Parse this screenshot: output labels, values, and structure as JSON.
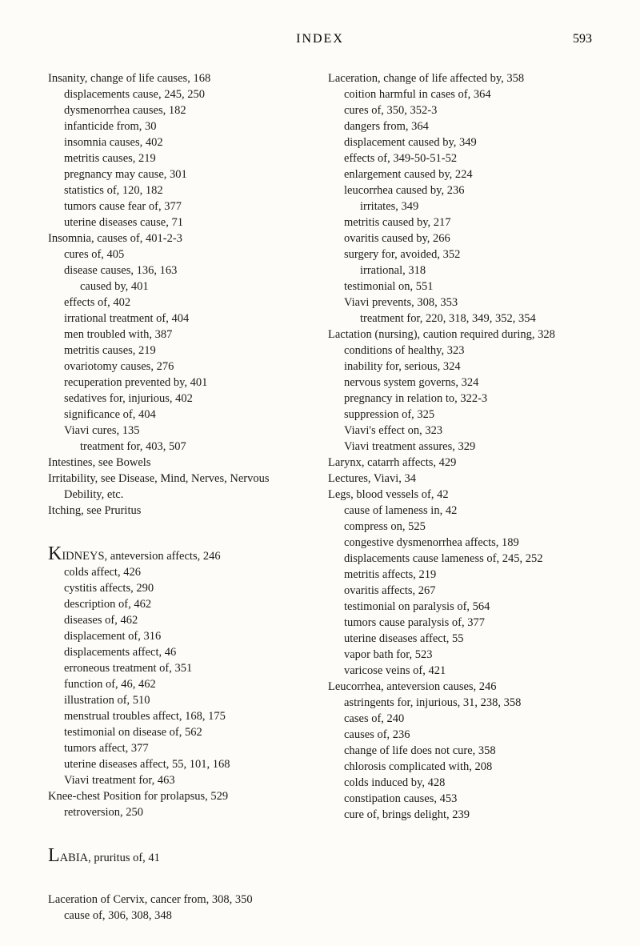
{
  "header": {
    "title": "INDEX",
    "page_number": "593"
  },
  "left_column": [
    {
      "lvl": 0,
      "text": "Insanity, change of life causes, 168"
    },
    {
      "lvl": 1,
      "text": "displacements cause, 245, 250"
    },
    {
      "lvl": 1,
      "text": "dysmenorrhea causes, 182"
    },
    {
      "lvl": 1,
      "text": "infanticide from, 30"
    },
    {
      "lvl": 1,
      "text": "insomnia causes, 402"
    },
    {
      "lvl": 1,
      "text": "metritis causes, 219"
    },
    {
      "lvl": 1,
      "text": "pregnancy may cause, 301"
    },
    {
      "lvl": 1,
      "text": "statistics of, 120, 182"
    },
    {
      "lvl": 1,
      "text": "tumors cause fear of, 377"
    },
    {
      "lvl": 1,
      "text": "uterine diseases cause, 71"
    },
    {
      "lvl": 0,
      "text": "Insomnia, causes of, 401-2-3"
    },
    {
      "lvl": 1,
      "text": "cures of, 405"
    },
    {
      "lvl": 1,
      "text": "disease causes, 136, 163"
    },
    {
      "lvl": 2,
      "text": "caused by, 401"
    },
    {
      "lvl": 1,
      "text": "effects of, 402"
    },
    {
      "lvl": 1,
      "text": "irrational treatment of, 404"
    },
    {
      "lvl": 1,
      "text": "men troubled with, 387"
    },
    {
      "lvl": 1,
      "text": "metritis causes, 219"
    },
    {
      "lvl": 1,
      "text": "ovariotomy causes, 276"
    },
    {
      "lvl": 1,
      "text": "recuperation prevented by, 401"
    },
    {
      "lvl": 1,
      "text": "sedatives for, injurious, 402"
    },
    {
      "lvl": 1,
      "text": "significance of, 404"
    },
    {
      "lvl": 1,
      "text": "Viavi cures, 135"
    },
    {
      "lvl": 2,
      "text": "treatment for, 403, 507"
    },
    {
      "lvl": 0,
      "text": "Intestines, see Bowels"
    },
    {
      "lvl": 0,
      "text": "Irritability, see Disease, Mind, Nerves, Nervous Debility, etc."
    },
    {
      "lvl": 0,
      "text": "Itching, see Pruritus"
    },
    {
      "lvl": 0,
      "text": "",
      "spacer": true
    },
    {
      "lvl": 0,
      "letter": "K",
      "text": "IDNEYS, anteversion affects, 246"
    },
    {
      "lvl": 1,
      "text": "colds affect, 426"
    },
    {
      "lvl": 1,
      "text": "cystitis affects, 290"
    },
    {
      "lvl": 1,
      "text": "description of, 462"
    },
    {
      "lvl": 1,
      "text": "diseases of, 462"
    },
    {
      "lvl": 1,
      "text": "displacement of, 316"
    },
    {
      "lvl": 1,
      "text": "displacements affect, 46"
    },
    {
      "lvl": 1,
      "text": "erroneous treatment of, 351"
    },
    {
      "lvl": 1,
      "text": "function of, 46, 462"
    },
    {
      "lvl": 1,
      "text": "illustration of, 510"
    },
    {
      "lvl": 1,
      "text": "menstrual troubles affect, 168, 175"
    },
    {
      "lvl": 1,
      "text": "testimonial on disease of, 562"
    },
    {
      "lvl": 1,
      "text": "tumors affect, 377"
    },
    {
      "lvl": 1,
      "text": "uterine diseases affect, 55, 101, 168"
    },
    {
      "lvl": 1,
      "text": "Viavi treatment for, 463"
    },
    {
      "lvl": 0,
      "text": "Knee-chest Position for prolapsus, 529"
    },
    {
      "lvl": 1,
      "text": "retroversion, 250"
    },
    {
      "lvl": 0,
      "text": "",
      "spacer": true
    },
    {
      "lvl": 0,
      "letter": "L",
      "text": "ABIA, pruritus of, 41"
    },
    {
      "lvl": 0,
      "text": "",
      "spacer": true
    },
    {
      "lvl": 0,
      "text": "Laceration of Cervix, cancer from, 308, 350"
    },
    {
      "lvl": 1,
      "text": "cause of, 306, 308, 348"
    }
  ],
  "right_column": [
    {
      "lvl": 0,
      "text": "Laceration, change of life affected by, 358"
    },
    {
      "lvl": 1,
      "text": "coition harmful in cases of, 364"
    },
    {
      "lvl": 1,
      "text": "cures of, 350, 352-3"
    },
    {
      "lvl": 1,
      "text": "dangers from, 364"
    },
    {
      "lvl": 1,
      "text": "displacement caused by, 349"
    },
    {
      "lvl": 1,
      "text": "effects of, 349-50-51-52"
    },
    {
      "lvl": 1,
      "text": "enlargement caused by, 224"
    },
    {
      "lvl": 1,
      "text": "leucorrhea caused by, 236"
    },
    {
      "lvl": 2,
      "text": "irritates, 349"
    },
    {
      "lvl": 1,
      "text": "metritis caused by, 217"
    },
    {
      "lvl": 1,
      "text": "ovaritis caused by, 266"
    },
    {
      "lvl": 1,
      "text": "surgery for, avoided, 352"
    },
    {
      "lvl": 2,
      "text": "irrational, 318"
    },
    {
      "lvl": 1,
      "text": "testimonial on, 551"
    },
    {
      "lvl": 1,
      "text": "Viavi prevents, 308, 353"
    },
    {
      "lvl": 2,
      "text": "treatment for, 220, 318, 349, 352, 354"
    },
    {
      "lvl": 0,
      "text": "Lactation (nursing), caution required during, 328"
    },
    {
      "lvl": 1,
      "text": "conditions of healthy, 323"
    },
    {
      "lvl": 1,
      "text": "inability for, serious, 324"
    },
    {
      "lvl": 1,
      "text": "nervous system governs, 324"
    },
    {
      "lvl": 1,
      "text": "pregnancy in relation to, 322-3"
    },
    {
      "lvl": 1,
      "text": "suppression of, 325"
    },
    {
      "lvl": 1,
      "text": "Viavi's effect on, 323"
    },
    {
      "lvl": 1,
      "text": "Viavi treatment assures, 329"
    },
    {
      "lvl": 0,
      "text": "Larynx, catarrh affects, 429"
    },
    {
      "lvl": 0,
      "text": "Lectures, Viavi, 34"
    },
    {
      "lvl": 0,
      "text": "Legs, blood vessels of, 42"
    },
    {
      "lvl": 1,
      "text": "cause of lameness in, 42"
    },
    {
      "lvl": 1,
      "text": "compress on, 525"
    },
    {
      "lvl": 1,
      "text": "congestive dysmenorrhea affects, 189"
    },
    {
      "lvl": 1,
      "text": "displacements cause lameness of, 245, 252"
    },
    {
      "lvl": 1,
      "text": "metritis affects, 219"
    },
    {
      "lvl": 1,
      "text": "ovaritis affects, 267"
    },
    {
      "lvl": 1,
      "text": "testimonial on paralysis of, 564"
    },
    {
      "lvl": 1,
      "text": "tumors cause paralysis of, 377"
    },
    {
      "lvl": 1,
      "text": "uterine diseases affect, 55"
    },
    {
      "lvl": 1,
      "text": "vapor bath for, 523"
    },
    {
      "lvl": 1,
      "text": "varicose veins of, 421"
    },
    {
      "lvl": 0,
      "text": "Leucorrhea, anteversion causes, 246"
    },
    {
      "lvl": 1,
      "text": "astringents for, injurious, 31, 238, 358"
    },
    {
      "lvl": 1,
      "text": "cases of, 240"
    },
    {
      "lvl": 1,
      "text": "causes of, 236"
    },
    {
      "lvl": 1,
      "text": "change of life does not cure, 358"
    },
    {
      "lvl": 1,
      "text": "chlorosis complicated with, 208"
    },
    {
      "lvl": 1,
      "text": "colds induced by, 428"
    },
    {
      "lvl": 1,
      "text": "constipation causes, 453"
    },
    {
      "lvl": 1,
      "text": "cure of, brings delight, 239"
    }
  ]
}
